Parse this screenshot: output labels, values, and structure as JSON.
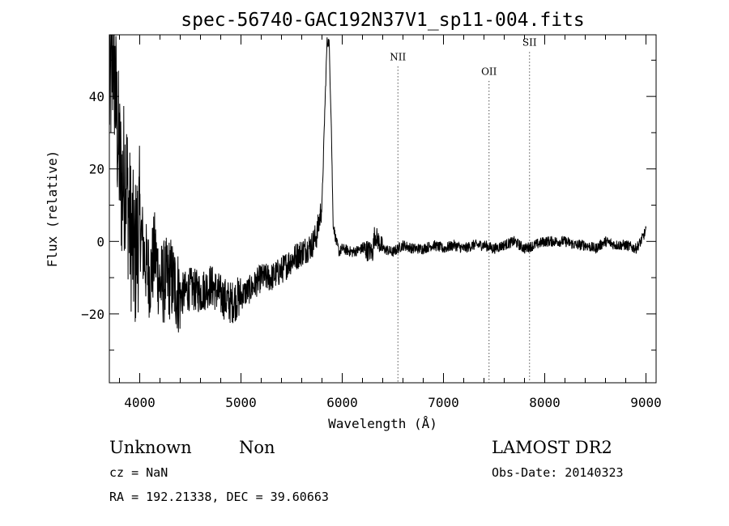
{
  "chart_data": {
    "type": "line",
    "title": "spec-56740-GAC192N37V1_sp11-004.fits",
    "xlabel": "Wavelength (Å)",
    "ylabel": "Flux (relative)",
    "xlim": [
      3700,
      9100
    ],
    "ylim": [
      -39,
      57
    ],
    "xticks": [
      4000,
      5000,
      6000,
      7000,
      8000,
      9000
    ],
    "yticks": [
      -20,
      0,
      20,
      40
    ],
    "grid": false,
    "series": [
      {
        "x": [
          3700,
          3740,
          3780,
          3820,
          3860,
          3900,
          3950,
          4000,
          4050,
          4100,
          4150,
          4200,
          4300,
          4400,
          4500,
          4600,
          4700,
          4800,
          4900,
          5000,
          5100,
          5200,
          5300,
          5400,
          5500,
          5600,
          5700,
          5750,
          5800,
          5830,
          5850,
          5870,
          5890,
          5910,
          5940,
          5970,
          6000,
          6100,
          6200,
          6300,
          6320,
          6400,
          6500,
          6600,
          6700,
          6800,
          6900,
          7000,
          7100,
          7200,
          7300,
          7400,
          7500,
          7600,
          7700,
          7800,
          7900,
          8000,
          8100,
          8200,
          8300,
          8400,
          8500,
          8600,
          8700,
          8800,
          8900,
          8950,
          9000
        ],
        "y": [
          40,
          52,
          30,
          15,
          20,
          5,
          -5,
          5,
          -5,
          -10,
          -3,
          -12,
          -10,
          -15,
          -13,
          -14,
          -12,
          -15,
          -17,
          -15,
          -13,
          -10,
          -10,
          -8,
          -5,
          -3,
          -1,
          2,
          10,
          38,
          55,
          55,
          35,
          5,
          0,
          -3,
          -2,
          -3,
          -2,
          -3,
          2,
          -2,
          -3,
          -1,
          -2,
          -2,
          -1,
          -2,
          -1,
          -2,
          -1,
          -1,
          -2,
          -1,
          0,
          -2,
          -1,
          0,
          0,
          0,
          -1,
          -1,
          -2,
          0,
          -1,
          -1,
          -2,
          0,
          3
        ]
      }
    ],
    "annotations": [
      {
        "label": "NII",
        "x": 6550,
        "label_y": 50
      },
      {
        "label": "OII",
        "x": 7450,
        "label_y": 46
      },
      {
        "label": "SII",
        "x": 7850,
        "label_y": 54
      }
    ]
  },
  "info": {
    "class_label": "Unknown",
    "subclass_label": "Non",
    "survey": "LAMOST DR2",
    "cz_line": "cz = NaN",
    "obs_date_line": "Obs-Date: 20140323",
    "coords_line": "RA = 192.21338, DEC =  39.60663"
  }
}
